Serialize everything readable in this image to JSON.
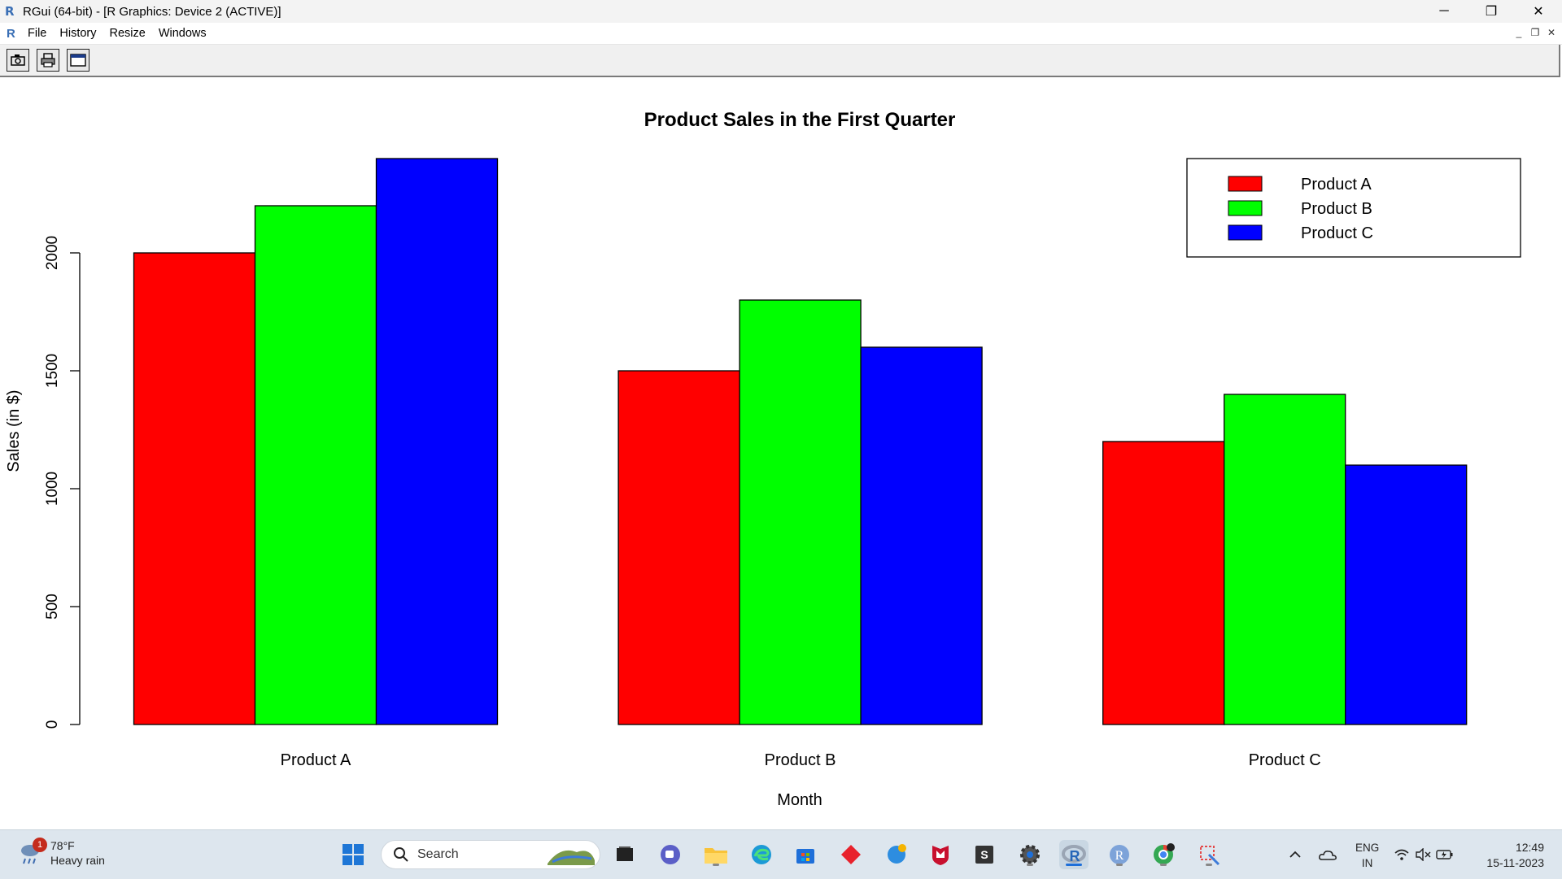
{
  "window": {
    "title": "RGui (64-bit) - [R Graphics: Device 2 (ACTIVE)]",
    "minimize_glyph": "─",
    "restore_glyph": "❐",
    "close_glyph": "✕"
  },
  "menu": {
    "items": [
      "File",
      "History",
      "Resize",
      "Windows"
    ]
  },
  "toolbar": {
    "buttons": [
      "copy-metafile-icon",
      "print-icon",
      "window-icon"
    ]
  },
  "chart_data": {
    "type": "bar",
    "title": "Product Sales in the First Quarter",
    "xlabel": "Month",
    "ylabel": "Sales (in $)",
    "categories": [
      "Product A",
      "Product B",
      "Product C"
    ],
    "series": [
      {
        "name": "Product A",
        "color": "#ff0000",
        "values": [
          2000,
          1500,
          1200
        ]
      },
      {
        "name": "Product B",
        "color": "#00ff00",
        "values": [
          2200,
          1800,
          1400
        ]
      },
      {
        "name": "Product C",
        "color": "#0000ff",
        "values": [
          2400,
          1600,
          1100
        ]
      }
    ],
    "yticks": [
      0,
      500,
      1000,
      1500,
      2000
    ],
    "ylim": [
      0,
      2400
    ],
    "legend_position": "top-right",
    "grid": false
  },
  "taskbar": {
    "weather": {
      "temp": "78°F",
      "condition": "Heavy rain",
      "badge": "1"
    },
    "search_label": "Search",
    "lang_top": "ENG",
    "lang_bottom": "IN",
    "time": "12:49",
    "date": "15-11-2023"
  }
}
